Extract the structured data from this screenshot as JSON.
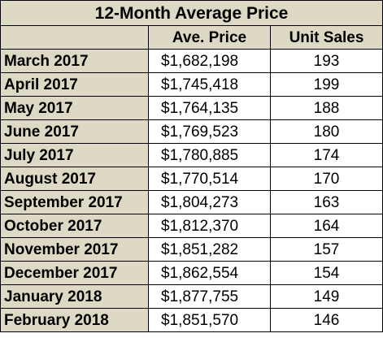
{
  "chart_data": {
    "type": "table",
    "title": "12-Month Average Price",
    "columns": [
      "",
      "Ave. Price",
      "Unit Sales"
    ],
    "rows": [
      {
        "month": "March 2017",
        "price": "$1,682,198",
        "sales": "193"
      },
      {
        "month": "April 2017",
        "price": "$1,745,418",
        "sales": "199"
      },
      {
        "month": "May 2017",
        "price": "$1,764,135",
        "sales": "188"
      },
      {
        "month": "June 2017",
        "price": "$1,769,523",
        "sales": "180"
      },
      {
        "month": "July 2017",
        "price": "$1,780,885",
        "sales": "174"
      },
      {
        "month": "August 2017",
        "price": "$1,770,514",
        "sales": "170"
      },
      {
        "month": "September 2017",
        "price": "$1,804,273",
        "sales": "163"
      },
      {
        "month": "October 2017",
        "price": "$1,812,370",
        "sales": "164"
      },
      {
        "month": "November 2017",
        "price": "$1,851,282",
        "sales": "157"
      },
      {
        "month": "December 2017",
        "price": "$1,862,554",
        "sales": "154"
      },
      {
        "month": "January 2018",
        "price": "$1,877,755",
        "sales": "149"
      },
      {
        "month": "February 2018",
        "price": "$1,851,570",
        "sales": "146"
      }
    ]
  },
  "colors": {
    "header_fill": "#ddd9c4",
    "cell_fill": "#ffffff",
    "border": "#000000"
  }
}
